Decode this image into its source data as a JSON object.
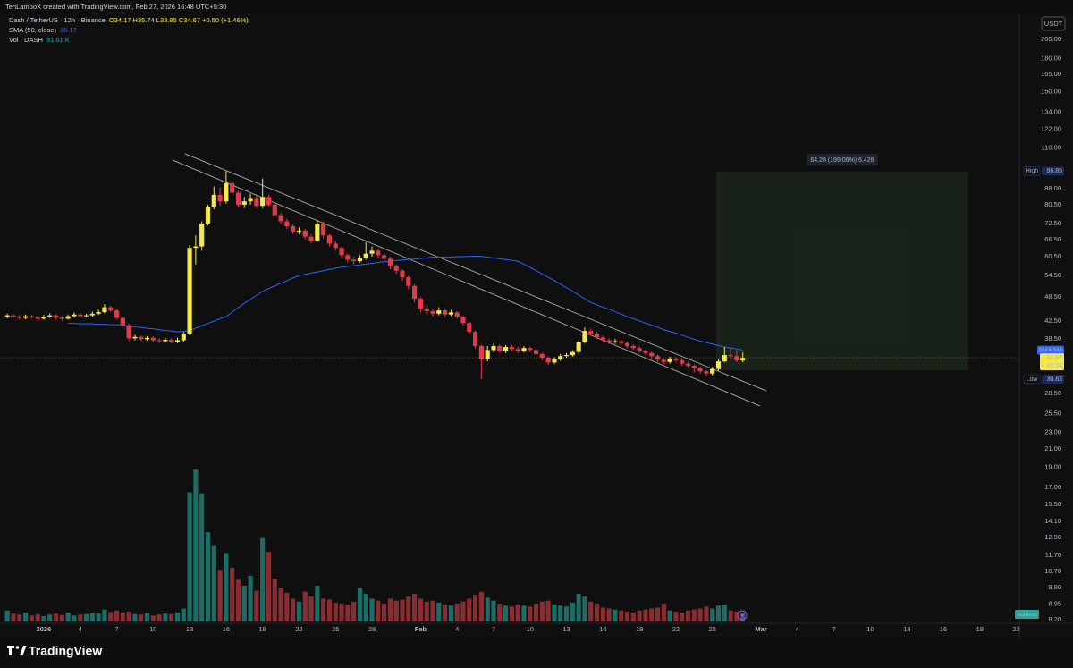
{
  "header": {
    "attribution": "TehLamboX created with TradingView.com, Feb 27, 2026 16:48 UTC+5:30"
  },
  "chart_data": {
    "type": "candlestick",
    "symbol": "Dash / TetherUS · 12h · Binance",
    "ohlc_legend": "O34.17 H35.74 L33.85 C34.67 +0.50 (+1.46%)",
    "sma_label": "SMA (50, close)",
    "sma_legend_value": 36.17,
    "volume_label": "Vol · DASH",
    "volume_legend": "91.61 K",
    "currency": "USDT",
    "up_color": "#f5e84c",
    "down_color": "#e13a4b",
    "open": [
      43.5,
      43.8,
      43.5,
      43.2,
      43.6,
      43.4,
      43.0,
      43.5,
      43.8,
      43.3,
      43.0,
      43.6,
      44.0,
      43.6,
      43.8,
      44.2,
      44.6,
      45.8,
      45.0,
      43.2,
      41.5,
      38.6,
      38.9,
      38.4,
      38.7,
      38.2,
      38.0,
      38.3,
      37.9,
      38.2,
      39.6,
      63.5,
      64.0,
      72.6,
      79.5,
      85.0,
      82.0,
      90.6,
      86.0,
      80.5,
      82.0,
      83.5,
      80.0,
      84.0,
      80.5,
      76.0,
      73.5,
      71.5,
      69.5,
      69.8,
      67.5,
      66.0,
      72.6,
      68.0,
      65.0,
      63.5,
      61.0,
      59.5,
      59.0,
      60.0,
      61.5,
      62.5,
      61.0,
      59.8,
      57.5,
      56.0,
      54.0,
      51.5,
      48.0,
      45.5,
      44.8,
      44.2,
      45.0,
      44.0,
      44.5,
      43.5,
      42.0,
      40.0,
      37.0,
      34.5,
      36.2,
      37.0,
      36.0,
      36.8,
      36.4,
      36.0,
      36.6,
      36.2,
      35.4,
      34.7,
      33.8,
      34.4,
      35.0,
      35.2,
      35.8,
      37.8,
      40.2,
      39.6,
      38.8,
      38.2,
      37.8,
      38.0,
      37.6,
      37.0,
      36.6,
      36.0,
      35.6,
      35.0,
      34.3,
      33.9,
      34.5,
      34.2,
      33.6,
      33.2,
      32.8,
      32.2,
      31.8,
      32.6,
      34.0,
      35.2,
      35.0,
      34.17
    ],
    "high": [
      44.2,
      44.1,
      43.9,
      44.0,
      43.9,
      43.7,
      43.9,
      44.3,
      44.1,
      43.6,
      44.0,
      44.5,
      44.3,
      44.2,
      44.7,
      45.2,
      46.6,
      46.2,
      45.3,
      43.5,
      41.8,
      39.4,
      39.2,
      39.1,
      39.0,
      38.6,
      38.7,
      38.6,
      38.7,
      40.0,
      64.5,
      68.0,
      73.5,
      80.5,
      89.0,
      88.5,
      96.85,
      92.0,
      87.0,
      84.0,
      85.5,
      84.5,
      93.0,
      85.0,
      81.5,
      77.0,
      74.5,
      72.5,
      71.0,
      70.5,
      68.5,
      74.0,
      73.5,
      68.5,
      66.0,
      64.0,
      61.5,
      60.5,
      61.0,
      65.5,
      64.0,
      63.0,
      61.5,
      60.5,
      58.0,
      56.5,
      54.5,
      52.0,
      48.5,
      46.5,
      45.5,
      45.8,
      45.5,
      45.2,
      44.8,
      43.8,
      42.3,
      40.3,
      37.3,
      37.0,
      37.6,
      37.3,
      37.2,
      37.2,
      36.8,
      37.0,
      36.9,
      36.5,
      35.7,
      35.0,
      34.8,
      35.4,
      35.6,
      36.2,
      38.2,
      41.0,
      40.8,
      40.0,
      39.2,
      38.6,
      38.5,
      38.3,
      37.9,
      37.3,
      36.9,
      36.3,
      35.9,
      35.3,
      34.6,
      34.9,
      34.8,
      34.5,
      33.9,
      33.5,
      33.1,
      32.5,
      33.0,
      34.4,
      36.8,
      36.5,
      36.2,
      35.74
    ],
    "low": [
      43.1,
      43.2,
      42.8,
      42.9,
      43.0,
      42.4,
      42.8,
      43.2,
      42.9,
      42.5,
      42.8,
      43.3,
      43.2,
      43.3,
      43.5,
      43.9,
      44.3,
      44.6,
      42.8,
      41.0,
      38.1,
      38.2,
      38.0,
      38.1,
      37.8,
      37.6,
      37.7,
      37.5,
      37.6,
      37.9,
      39.2,
      58.0,
      62.5,
      71.8,
      78.5,
      80.0,
      81.0,
      84.5,
      79.5,
      79.0,
      80.5,
      79.0,
      79.0,
      79.5,
      75.0,
      72.5,
      70.5,
      68.5,
      68.5,
      66.5,
      65.0,
      65.5,
      67.0,
      64.0,
      62.5,
      60.0,
      58.5,
      58.0,
      58.5,
      59.5,
      60.5,
      60.0,
      59.0,
      56.5,
      55.0,
      53.0,
      50.5,
      47.0,
      44.5,
      44.0,
      43.5,
      43.8,
      43.5,
      43.6,
      43.0,
      41.5,
      39.5,
      36.5,
      30.83,
      34.0,
      35.8,
      35.6,
      35.6,
      36.0,
      35.6,
      35.7,
      35.8,
      35.0,
      34.2,
      33.3,
      33.5,
      34.1,
      34.7,
      34.9,
      35.5,
      37.5,
      39.2,
      38.4,
      37.8,
      37.4,
      37.4,
      37.2,
      36.6,
      36.2,
      35.6,
      35.2,
      34.6,
      33.9,
      33.5,
      33.6,
      33.8,
      33.2,
      32.8,
      32.0,
      31.8,
      31.3,
      31.5,
      32.3,
      33.8,
      34.6,
      33.9,
      33.85
    ],
    "close": [
      43.8,
      43.5,
      43.2,
      43.6,
      43.4,
      43.0,
      43.5,
      43.8,
      43.3,
      43.0,
      43.6,
      44.0,
      43.6,
      43.8,
      44.2,
      44.6,
      45.8,
      45.0,
      43.2,
      41.5,
      38.6,
      38.9,
      38.4,
      38.7,
      38.2,
      38.0,
      38.3,
      37.9,
      38.2,
      39.6,
      63.5,
      64.0,
      72.6,
      79.5,
      85.0,
      82.0,
      90.6,
      86.0,
      80.5,
      82.0,
      83.5,
      80.0,
      84.0,
      80.5,
      76.0,
      73.5,
      71.5,
      69.5,
      69.8,
      67.5,
      66.0,
      72.6,
      68.0,
      65.0,
      63.5,
      61.0,
      59.5,
      59.0,
      60.0,
      61.5,
      62.5,
      61.0,
      59.8,
      57.5,
      56.0,
      54.0,
      51.5,
      48.0,
      45.5,
      44.8,
      44.2,
      45.0,
      44.0,
      44.5,
      43.5,
      42.0,
      40.0,
      37.0,
      34.5,
      36.2,
      37.0,
      36.0,
      36.8,
      36.4,
      36.0,
      36.6,
      36.2,
      35.4,
      34.7,
      33.8,
      34.4,
      35.0,
      35.2,
      35.8,
      37.8,
      40.2,
      39.6,
      38.8,
      38.2,
      37.8,
      38.0,
      37.6,
      37.0,
      36.6,
      36.0,
      35.6,
      35.0,
      34.3,
      33.9,
      34.5,
      34.2,
      33.6,
      33.2,
      32.8,
      32.2,
      31.8,
      32.6,
      34.0,
      35.2,
      35.0,
      34.17,
      34.67
    ],
    "sma": {
      "name": "SMA:MA",
      "color": "#2962ff",
      "values": [
        null,
        null,
        null,
        null,
        null,
        null,
        null,
        null,
        null,
        null,
        41.9,
        41.9,
        41.8,
        41.8,
        41.8,
        41.7,
        41.7,
        41.6,
        41.6,
        41.5,
        41.3,
        41.1,
        41.0,
        40.8,
        40.7,
        40.5,
        40.3,
        40.2,
        40.0,
        40.1,
        40.3,
        40.8,
        41.4,
        41.9,
        42.4,
        43.0,
        43.5,
        44.6,
        45.7,
        46.8,
        47.8,
        48.9,
        50.0,
        50.8,
        51.5,
        52.3,
        53.0,
        53.8,
        54.5,
        54.9,
        55.3,
        55.6,
        56.0,
        56.4,
        56.8,
        57.1,
        57.3,
        57.6,
        57.8,
        58.1,
        58.3,
        58.6,
        58.8,
        59.0,
        59.2,
        59.4,
        59.6,
        59.7,
        59.9,
        60.1,
        60.3,
        60.3,
        60.4,
        60.4,
        60.5,
        60.5,
        60.6,
        60.6,
        60.6,
        60.3,
        60.1,
        59.8,
        59.5,
        59.3,
        59.0,
        58.0,
        57.0,
        56.0,
        55.0,
        54.0,
        53.0,
        52.0,
        51.0,
        50.0,
        49.0,
        48.0,
        47.0,
        46.4,
        45.8,
        45.3,
        44.7,
        44.1,
        43.5,
        43.0,
        42.5,
        42.0,
        41.5,
        41.0,
        40.5,
        40.1,
        39.7,
        39.3,
        38.8,
        38.4,
        38.0,
        37.7,
        37.4,
        37.1,
        36.8,
        36.6,
        36.4,
        36.17
      ]
    },
    "volume": {
      "name": "Volume",
      "up_color": "#1c6d66",
      "down_color": "#8a2d33",
      "badge_color": "#26a69a",
      "values": [
        110,
        80,
        70,
        90,
        60,
        75,
        55,
        70,
        80,
        65,
        90,
        60,
        70,
        75,
        85,
        80,
        120,
        95,
        110,
        90,
        100,
        75,
        70,
        85,
        60,
        70,
        80,
        75,
        90,
        130,
        1300,
        1530,
        1290,
        900,
        760,
        520,
        690,
        540,
        420,
        360,
        460,
        310,
        840,
        700,
        430,
        340,
        290,
        230,
        200,
        300,
        250,
        360,
        230,
        220,
        190,
        180,
        170,
        200,
        340,
        280,
        230,
        210,
        180,
        230,
        210,
        220,
        250,
        280,
        230,
        200,
        210,
        190,
        170,
        160,
        180,
        200,
        230,
        270,
        300,
        240,
        210,
        180,
        160,
        150,
        170,
        160,
        150,
        180,
        200,
        210,
        170,
        160,
        150,
        190,
        280,
        250,
        200,
        180,
        140,
        130,
        120,
        110,
        100,
        90,
        110,
        120,
        130,
        140,
        180,
        110,
        100,
        90,
        110,
        120,
        130,
        150,
        130,
        160,
        170,
        110,
        100,
        91.61
      ]
    },
    "log_scale": true,
    "grid": false,
    "ylim": [
      7.74,
      225
    ],
    "yticks": [
      {
        "value": 200,
        "label": "200.00"
      },
      {
        "value": 180,
        "label": "180.00"
      },
      {
        "value": 165,
        "label": "165.00"
      },
      {
        "value": 150,
        "label": "150.00"
      },
      {
        "value": 134,
        "label": "134.00"
      },
      {
        "value": 122,
        "label": "122.00"
      },
      {
        "value": 110,
        "label": "110.00"
      },
      {
        "value": 88,
        "label": "88.00"
      },
      {
        "value": 80.5,
        "label": "80.50"
      },
      {
        "value": 72.5,
        "label": "72.50"
      },
      {
        "value": 66.5,
        "label": "66.50"
      },
      {
        "value": 60.5,
        "label": "60.50"
      },
      {
        "value": 54.5,
        "label": "54.50"
      },
      {
        "value": 48.5,
        "label": "48.50"
      },
      {
        "value": 42.5,
        "label": "42.50"
      },
      {
        "value": 38.5,
        "label": "38.50"
      },
      {
        "value": 28.5,
        "label": "28.50"
      },
      {
        "value": 25.5,
        "label": "25.50"
      },
      {
        "value": 23,
        "label": "23.00"
      },
      {
        "value": 21,
        "label": "21.00"
      },
      {
        "value": 19,
        "label": "19.00"
      },
      {
        "value": 17,
        "label": "17.00"
      },
      {
        "value": 15.5,
        "label": "15.50"
      },
      {
        "value": 14.1,
        "label": "14.10"
      },
      {
        "value": 12.9,
        "label": "12.90"
      },
      {
        "value": 11.7,
        "label": "11.70"
      },
      {
        "value": 10.7,
        "label": "10.70"
      },
      {
        "value": 9.8,
        "label": "9.80"
      },
      {
        "value": 8.95,
        "label": "8.95"
      },
      {
        "value": 8.2,
        "label": "8.20"
      }
    ],
    "xlim": [
      -1.2,
      166.5
    ],
    "xticks": [
      {
        "value": 6,
        "label": "2026"
      },
      {
        "value": 12,
        "label": "4"
      },
      {
        "value": 18,
        "label": "7"
      },
      {
        "value": 24,
        "label": "10"
      },
      {
        "value": 30,
        "label": "13"
      },
      {
        "value": 36,
        "label": "16"
      },
      {
        "value": 42,
        "label": "19"
      },
      {
        "value": 48,
        "label": "22"
      },
      {
        "value": 54,
        "label": "25"
      },
      {
        "value": 60,
        "label": "28"
      },
      {
        "value": 68,
        "label": "Feb"
      },
      {
        "value": 74,
        "label": "4"
      },
      {
        "value": 80,
        "label": "7"
      },
      {
        "value": 86,
        "label": "10"
      },
      {
        "value": 92,
        "label": "13"
      },
      {
        "value": 98,
        "label": "16"
      },
      {
        "value": 104,
        "label": "19"
      },
      {
        "value": 110,
        "label": "22"
      },
      {
        "value": 116,
        "label": "25"
      },
      {
        "value": 124,
        "label": "Mar"
      },
      {
        "value": 130,
        "label": "4"
      },
      {
        "value": 136,
        "label": "7"
      },
      {
        "value": 142,
        "label": "10"
      },
      {
        "value": 148,
        "label": "13"
      },
      {
        "value": 154,
        "label": "16"
      },
      {
        "value": 160,
        "label": "19"
      },
      {
        "value": 166,
        "label": "22"
      }
    ],
    "high_marker": {
      "label": "High",
      "value": 96.85
    },
    "low_marker": {
      "label": "Low",
      "value": 30.83
    },
    "last_price": {
      "value": 34.67,
      "countdown": "41:12"
    },
    "measure": {
      "label": "64.28 (199.06%) 6,428"
    }
  },
  "footer": {
    "brand": "TradingView"
  }
}
